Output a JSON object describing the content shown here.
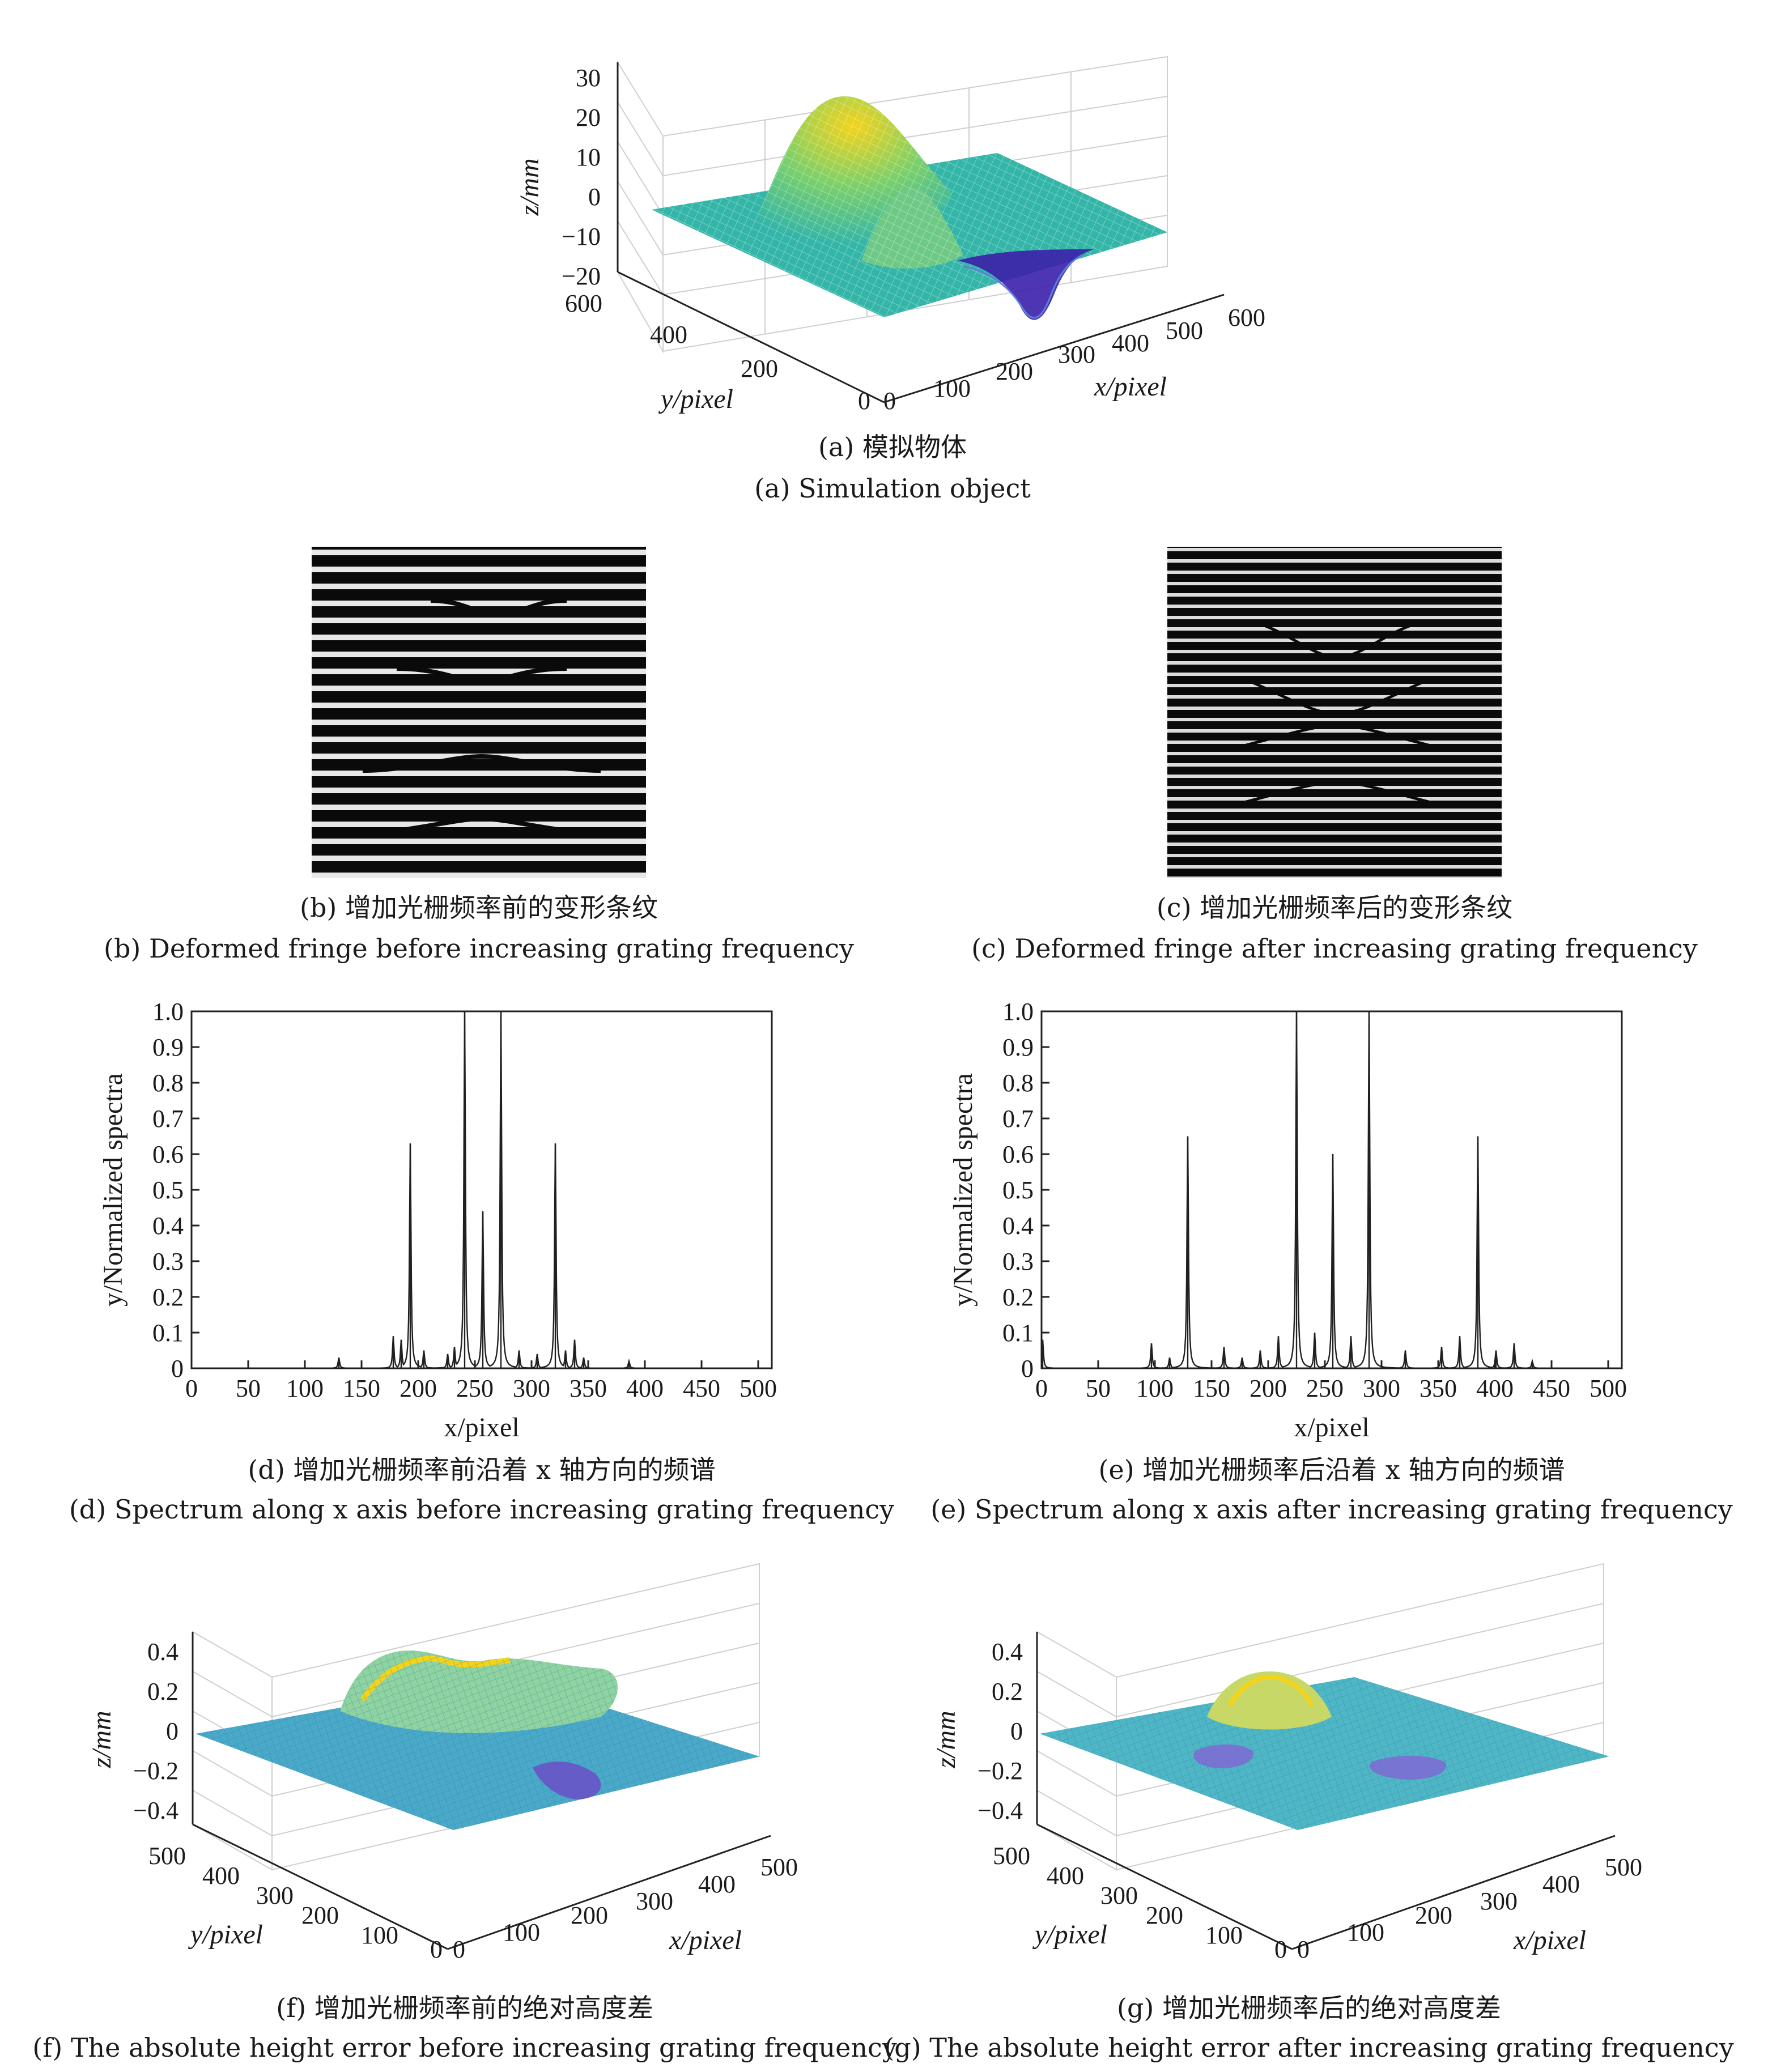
{
  "panels": {
    "a": {
      "caption_cn": "(a) 模拟物体",
      "caption_en": "(a) Simulation object",
      "z_label": "z/mm",
      "x_label": "x/pixel",
      "y_label": "y/pixel",
      "z_ticks": [
        "30",
        "20",
        "10",
        "0",
        "−10",
        "−20"
      ],
      "x_ticks": [
        "0",
        "100",
        "200",
        "300",
        "400",
        "500",
        "600"
      ],
      "y_ticks": [
        "600",
        "400",
        "200",
        "0"
      ]
    },
    "b": {
      "caption_cn": "(b) 增加光栅频率前的变形条纹",
      "caption_en": "(b) Deformed fringe before increasing grating frequency"
    },
    "c": {
      "caption_cn": "(c) 增加光栅频率后的变形条纹",
      "caption_en": "(c) Deformed fringe after increasing grating frequency"
    },
    "d": {
      "caption_cn": "(d) 增加光栅频率前沿着 x 轴方向的频谱",
      "caption_en": "(d) Spectrum along x axis before increasing grating frequency"
    },
    "e": {
      "caption_cn": "(e) 增加光栅频率后沿着 x 轴方向的频谱",
      "caption_en": "(e) Spectrum along x axis after increasing grating frequency"
    },
    "f": {
      "caption_cn": "(f) 增加光栅频率前的绝对高度差",
      "caption_en": "(f) The absolute height error before increasing grating frequency",
      "z_label": "z/mm",
      "x_label": "x/pixel",
      "y_label": "y/pixel",
      "z_ticks": [
        "0.4",
        "0.2",
        "0",
        "−0.2",
        "−0.4"
      ],
      "x_ticks": [
        "0",
        "100",
        "200",
        "300",
        "400",
        "500"
      ],
      "y_ticks": [
        "500",
        "400",
        "300",
        "200",
        "100",
        "0"
      ]
    },
    "g": {
      "caption_cn": "(g) 增加光栅频率后的绝对高度差",
      "caption_en": "(g) The absolute height error after increasing grating frequency",
      "z_label": "z/mm",
      "x_label": "x/pixel",
      "y_label": "y/pixel",
      "z_ticks": [
        "0.4",
        "0.2",
        "0",
        "−0.2",
        "−0.4"
      ],
      "x_ticks": [
        "0",
        "100",
        "200",
        "300",
        "400",
        "500"
      ],
      "y_ticks": [
        "500",
        "400",
        "300",
        "200",
        "100",
        "0"
      ]
    }
  },
  "colors": {
    "surface_low": "#3b1fa8",
    "surface_mid": "#33b5a8",
    "surface_high": "#f4d31a",
    "line": "#202020"
  },
  "chart_data": [
    {
      "id": "d",
      "type": "line",
      "xlabel": "x/pixel",
      "ylabel": "y/Normalized spectra",
      "xlim": [
        0,
        512
      ],
      "ylim": [
        0,
        1.0
      ],
      "xticks": [
        0,
        50,
        100,
        150,
        200,
        250,
        300,
        350,
        400,
        450,
        500
      ],
      "yticks": [
        0,
        0.1,
        0.2,
        0.3,
        0.4,
        0.5,
        0.6,
        0.7,
        0.8,
        0.9,
        1.0
      ],
      "peaks": [
        {
          "x": 193,
          "y": 0.63
        },
        {
          "x": 241,
          "y": 1.0
        },
        {
          "x": 257,
          "y": 0.44
        },
        {
          "x": 273,
          "y": 1.0
        },
        {
          "x": 321,
          "y": 0.63
        },
        {
          "x": 130,
          "y": 0.03
        },
        {
          "x": 178,
          "y": 0.09
        },
        {
          "x": 185,
          "y": 0.08
        },
        {
          "x": 205,
          "y": 0.05
        },
        {
          "x": 226,
          "y": 0.04
        },
        {
          "x": 232,
          "y": 0.06
        },
        {
          "x": 289,
          "y": 0.05
        },
        {
          "x": 305,
          "y": 0.04
        },
        {
          "x": 330,
          "y": 0.05
        },
        {
          "x": 338,
          "y": 0.08
        },
        {
          "x": 346,
          "y": 0.03
        },
        {
          "x": 386,
          "y": 0.02
        }
      ]
    },
    {
      "id": "e",
      "type": "line",
      "xlabel": "x/pixel",
      "ylabel": "y/Normalized spectra",
      "xlim": [
        0,
        512
      ],
      "ylim": [
        0,
        1.0
      ],
      "xticks": [
        0,
        50,
        100,
        150,
        200,
        250,
        300,
        350,
        400,
        450,
        500
      ],
      "yticks": [
        0,
        0.1,
        0.2,
        0.3,
        0.4,
        0.5,
        0.6,
        0.7,
        0.8,
        0.9,
        1.0
      ],
      "peaks": [
        {
          "x": 1,
          "y": 0.08
        },
        {
          "x": 129,
          "y": 0.65
        },
        {
          "x": 225,
          "y": 1.0
        },
        {
          "x": 257,
          "y": 0.6
        },
        {
          "x": 289,
          "y": 1.0
        },
        {
          "x": 385,
          "y": 0.65
        },
        {
          "x": 97,
          "y": 0.07
        },
        {
          "x": 113,
          "y": 0.03
        },
        {
          "x": 161,
          "y": 0.06
        },
        {
          "x": 177,
          "y": 0.03
        },
        {
          "x": 193,
          "y": 0.05
        },
        {
          "x": 209,
          "y": 0.09
        },
        {
          "x": 241,
          "y": 0.1
        },
        {
          "x": 273,
          "y": 0.09
        },
        {
          "x": 321,
          "y": 0.05
        },
        {
          "x": 353,
          "y": 0.06
        },
        {
          "x": 369,
          "y": 0.09
        },
        {
          "x": 401,
          "y": 0.05
        },
        {
          "x": 417,
          "y": 0.07
        },
        {
          "x": 433,
          "y": 0.02
        }
      ]
    }
  ]
}
